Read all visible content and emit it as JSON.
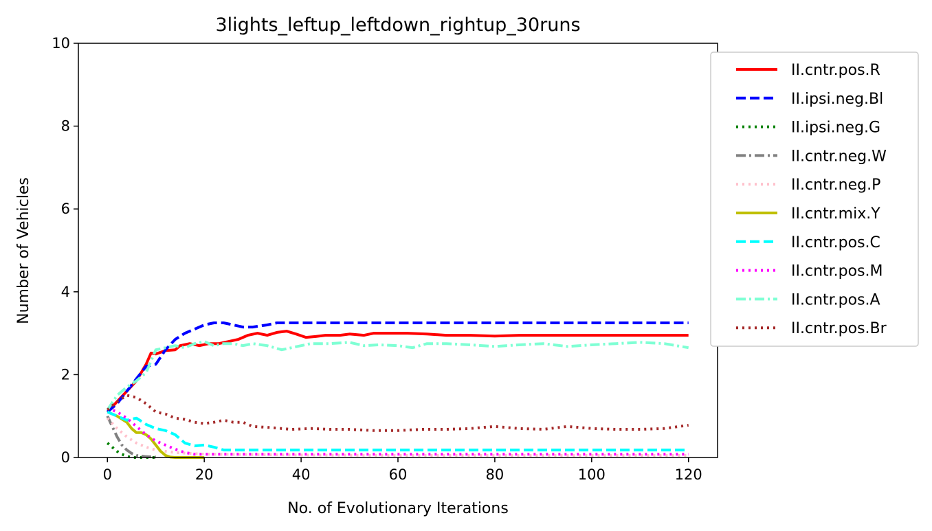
{
  "chart_data": {
    "type": "line",
    "title": "3lights_leftup_leftdown_rightup_30runs",
    "xlabel": "No. of Evolutionary Iterations",
    "ylabel": "Number of Vehicles",
    "xlim": [
      -6,
      126
    ],
    "ylim": [
      0,
      10
    ],
    "xticks": [
      0,
      20,
      40,
      60,
      80,
      100,
      120
    ],
    "yticks": [
      0,
      2,
      4,
      6,
      8,
      10
    ],
    "grid": false,
    "legend_position": "outside-right",
    "series": [
      {
        "name": "II.cntr.pos.R",
        "color": "#ff0000",
        "style": "solid",
        "points": [
          [
            0,
            1.1
          ],
          [
            2,
            1.35
          ],
          [
            4,
            1.6
          ],
          [
            6,
            1.85
          ],
          [
            8,
            2.25
          ],
          [
            9,
            2.52
          ],
          [
            10,
            2.5
          ],
          [
            12,
            2.58
          ],
          [
            14,
            2.6
          ],
          [
            15,
            2.7
          ],
          [
            17,
            2.75
          ],
          [
            19,
            2.7
          ],
          [
            21,
            2.75
          ],
          [
            23,
            2.75
          ],
          [
            25,
            2.8
          ],
          [
            27,
            2.85
          ],
          [
            29,
            2.95
          ],
          [
            31,
            3.0
          ],
          [
            33,
            2.95
          ],
          [
            35,
            3.02
          ],
          [
            37,
            3.05
          ],
          [
            39,
            2.98
          ],
          [
            41,
            2.9
          ],
          [
            43,
            2.92
          ],
          [
            45,
            2.95
          ],
          [
            48,
            2.95
          ],
          [
            50,
            2.98
          ],
          [
            53,
            2.95
          ],
          [
            55,
            3.0
          ],
          [
            58,
            3.0
          ],
          [
            62,
            3.0
          ],
          [
            66,
            2.98
          ],
          [
            70,
            2.95
          ],
          [
            75,
            2.95
          ],
          [
            80,
            2.93
          ],
          [
            85,
            2.95
          ],
          [
            90,
            2.95
          ],
          [
            100,
            2.95
          ],
          [
            110,
            2.95
          ],
          [
            120,
            2.95
          ]
        ]
      },
      {
        "name": "II.ipsi.neg.Bl",
        "color": "#0000ff",
        "style": "dashed",
        "points": [
          [
            0,
            1.1
          ],
          [
            2,
            1.3
          ],
          [
            4,
            1.6
          ],
          [
            6,
            1.9
          ],
          [
            8,
            2.2
          ],
          [
            10,
            2.25
          ],
          [
            12,
            2.6
          ],
          [
            14,
            2.85
          ],
          [
            16,
            3.0
          ],
          [
            18,
            3.1
          ],
          [
            20,
            3.2
          ],
          [
            22,
            3.25
          ],
          [
            24,
            3.25
          ],
          [
            26,
            3.2
          ],
          [
            28,
            3.15
          ],
          [
            30,
            3.15
          ],
          [
            33,
            3.2
          ],
          [
            35,
            3.25
          ],
          [
            40,
            3.25
          ],
          [
            60,
            3.25
          ],
          [
            80,
            3.25
          ],
          [
            100,
            3.25
          ],
          [
            120,
            3.25
          ]
        ]
      },
      {
        "name": "II.ipsi.neg.G",
        "color": "#008000",
        "style": "dotted",
        "points": [
          [
            0,
            0.35
          ],
          [
            1,
            0.25
          ],
          [
            2,
            0.15
          ],
          [
            3,
            0.08
          ],
          [
            4,
            0.03
          ],
          [
            5,
            0.0
          ],
          [
            10,
            0.0
          ]
        ]
      },
      {
        "name": "II.cntr.neg.W",
        "color": "#808080",
        "style": "dashdot",
        "points": [
          [
            0,
            1.0
          ],
          [
            1,
            0.75
          ],
          [
            2,
            0.5
          ],
          [
            3,
            0.3
          ],
          [
            4,
            0.18
          ],
          [
            5,
            0.1
          ],
          [
            6,
            0.05
          ],
          [
            8,
            0.02
          ],
          [
            10,
            0.01
          ]
        ]
      },
      {
        "name": "II.cntr.neg.P",
        "color": "#ffc0cb",
        "style": "dotted",
        "points": [
          [
            0,
            0.95
          ],
          [
            2,
            0.7
          ],
          [
            4,
            0.5
          ],
          [
            6,
            0.35
          ],
          [
            8,
            0.25
          ],
          [
            10,
            0.18
          ],
          [
            14,
            0.12
          ],
          [
            20,
            0.08
          ],
          [
            40,
            0.06
          ],
          [
            60,
            0.05
          ],
          [
            80,
            0.05
          ],
          [
            100,
            0.05
          ],
          [
            120,
            0.05
          ]
        ]
      },
      {
        "name": "II.cntr.mix.Y",
        "color": "#bfbf00",
        "style": "solid",
        "points": [
          [
            0,
            1.1
          ],
          [
            2,
            1.0
          ],
          [
            4,
            0.85
          ],
          [
            5,
            0.7
          ],
          [
            6,
            0.6
          ],
          [
            7,
            0.6
          ],
          [
            8,
            0.55
          ],
          [
            9,
            0.45
          ],
          [
            10,
            0.3
          ],
          [
            11,
            0.15
          ],
          [
            12,
            0.05
          ],
          [
            13,
            0.01
          ],
          [
            14,
            0.0
          ],
          [
            20,
            0.0
          ]
        ]
      },
      {
        "name": "II.cntr.pos.C",
        "color": "#00ffff",
        "style": "dashed",
        "points": [
          [
            0,
            1.1
          ],
          [
            2,
            1.0
          ],
          [
            4,
            0.9
          ],
          [
            6,
            0.95
          ],
          [
            8,
            0.8
          ],
          [
            10,
            0.7
          ],
          [
            12,
            0.65
          ],
          [
            14,
            0.55
          ],
          [
            16,
            0.35
          ],
          [
            18,
            0.28
          ],
          [
            20,
            0.3
          ],
          [
            22,
            0.25
          ],
          [
            24,
            0.18
          ],
          [
            26,
            0.18
          ],
          [
            30,
            0.18
          ],
          [
            40,
            0.18
          ],
          [
            60,
            0.18
          ],
          [
            80,
            0.18
          ],
          [
            100,
            0.18
          ],
          [
            120,
            0.18
          ]
        ]
      },
      {
        "name": "II.cntr.pos.M",
        "color": "#ff00ff",
        "style": "dotted",
        "points": [
          [
            0,
            1.2
          ],
          [
            2,
            1.1
          ],
          [
            4,
            0.95
          ],
          [
            6,
            0.75
          ],
          [
            8,
            0.55
          ],
          [
            10,
            0.4
          ],
          [
            12,
            0.3
          ],
          [
            14,
            0.2
          ],
          [
            16,
            0.12
          ],
          [
            18,
            0.08
          ],
          [
            20,
            0.08
          ],
          [
            30,
            0.08
          ],
          [
            60,
            0.08
          ],
          [
            90,
            0.08
          ],
          [
            120,
            0.08
          ]
        ]
      },
      {
        "name": "II.cntr.pos.A",
        "color": "#7fffd4",
        "style": "dashdot",
        "points": [
          [
            0,
            1.15
          ],
          [
            2,
            1.5
          ],
          [
            4,
            1.7
          ],
          [
            6,
            1.85
          ],
          [
            8,
            2.05
          ],
          [
            10,
            2.6
          ],
          [
            12,
            2.65
          ],
          [
            14,
            2.7
          ],
          [
            16,
            2.65
          ],
          [
            18,
            2.75
          ],
          [
            20,
            2.8
          ],
          [
            22,
            2.7
          ],
          [
            24,
            2.75
          ],
          [
            26,
            2.75
          ],
          [
            28,
            2.7
          ],
          [
            30,
            2.75
          ],
          [
            33,
            2.7
          ],
          [
            36,
            2.6
          ],
          [
            38,
            2.65
          ],
          [
            40,
            2.7
          ],
          [
            42,
            2.75
          ],
          [
            46,
            2.75
          ],
          [
            50,
            2.78
          ],
          [
            53,
            2.7
          ],
          [
            56,
            2.72
          ],
          [
            60,
            2.7
          ],
          [
            63,
            2.65
          ],
          [
            66,
            2.75
          ],
          [
            70,
            2.75
          ],
          [
            75,
            2.72
          ],
          [
            80,
            2.68
          ],
          [
            85,
            2.72
          ],
          [
            90,
            2.75
          ],
          [
            95,
            2.68
          ],
          [
            100,
            2.72
          ],
          [
            105,
            2.75
          ],
          [
            110,
            2.78
          ],
          [
            115,
            2.75
          ],
          [
            120,
            2.65
          ]
        ]
      },
      {
        "name": "II.cntr.pos.Br",
        "color": "#a52a2a",
        "style": "dotted",
        "points": [
          [
            0,
            1.15
          ],
          [
            2,
            1.35
          ],
          [
            4,
            1.5
          ],
          [
            6,
            1.45
          ],
          [
            8,
            1.3
          ],
          [
            10,
            1.1
          ],
          [
            12,
            1.05
          ],
          [
            14,
            0.95
          ],
          [
            16,
            0.92
          ],
          [
            18,
            0.85
          ],
          [
            20,
            0.82
          ],
          [
            22,
            0.85
          ],
          [
            24,
            0.9
          ],
          [
            26,
            0.85
          ],
          [
            28,
            0.85
          ],
          [
            30,
            0.75
          ],
          [
            34,
            0.72
          ],
          [
            38,
            0.68
          ],
          [
            42,
            0.7
          ],
          [
            46,
            0.68
          ],
          [
            50,
            0.68
          ],
          [
            55,
            0.65
          ],
          [
            60,
            0.65
          ],
          [
            65,
            0.68
          ],
          [
            70,
            0.68
          ],
          [
            75,
            0.7
          ],
          [
            80,
            0.75
          ],
          [
            85,
            0.7
          ],
          [
            90,
            0.68
          ],
          [
            95,
            0.75
          ],
          [
            100,
            0.7
          ],
          [
            105,
            0.68
          ],
          [
            110,
            0.68
          ],
          [
            115,
            0.7
          ],
          [
            120,
            0.78
          ]
        ]
      }
    ]
  }
}
